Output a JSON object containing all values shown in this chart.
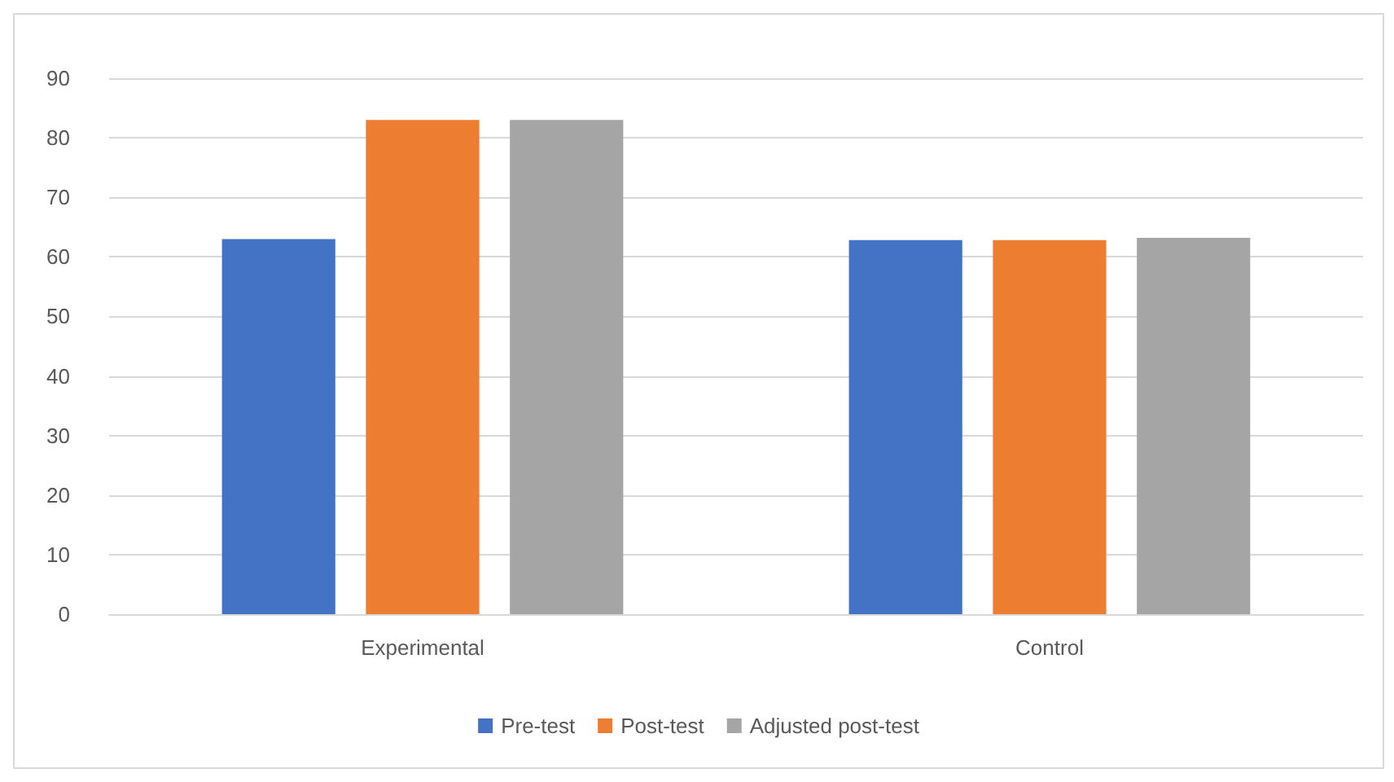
{
  "chart_data": {
    "type": "bar",
    "categories": [
      "Experimental",
      "Control"
    ],
    "series": [
      {
        "name": "Pre-test",
        "color": "#4472c4",
        "values": [
          63,
          62.8
        ]
      },
      {
        "name": "Post-test",
        "color": "#ed7d31",
        "values": [
          83,
          62.8
        ]
      },
      {
        "name": "Adjusted post-test",
        "color": "#a5a5a5",
        "values": [
          83,
          63.2
        ]
      }
    ],
    "ylim": [
      0,
      90
    ],
    "yticks": [
      0,
      10,
      20,
      30,
      40,
      50,
      60,
      70,
      80,
      90
    ],
    "grid": "y",
    "legend": "bottom"
  }
}
